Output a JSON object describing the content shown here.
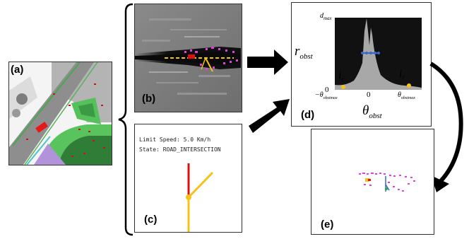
{
  "panels": {
    "a": {
      "label": "(a)"
    },
    "b": {
      "label": "(b)"
    },
    "c": {
      "label": "(c)",
      "limit_speed": "Limit Speed: 5.0 Km/h",
      "state": "State: ROAD_INTERSECTION"
    },
    "d": {
      "label": "(d)",
      "d_max": "d",
      "d_max_sub": "max",
      "r_obst": "r",
      "r_obst_sub": "obst",
      "theta_obst": "θ",
      "theta_obst_sub": "obst",
      "zero_y": "0",
      "zero_x": "0",
      "x_min": "−θ",
      "x_min_sub": "obstmax",
      "x_max": "θ",
      "x_max_sub": "obstmax",
      "i_r": "i",
      "i_r_sub": "r",
      "i_l": "i",
      "i_l_sub": "l"
    },
    "e": {
      "label": "(e)"
    }
  },
  "colors": {
    "magenta": "#e23ce3",
    "red": "#e01010",
    "yellow": "#f3c417",
    "green": "#2ea84a",
    "blue": "#3a67c8",
    "dark": "#111111"
  }
}
